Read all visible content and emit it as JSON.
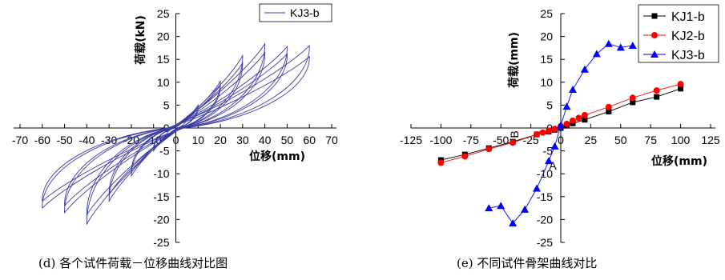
{
  "chart_data": [
    {
      "type": "line",
      "caption": "(d) 各个试件荷载－位移曲线对比图",
      "xlabel": "位移(mm)",
      "ylabel": "荷载(kN)",
      "xlim": [
        -70,
        70
      ],
      "ylim": [
        -25,
        25
      ],
      "x_ticks": [
        "-70",
        "-60",
        "-50",
        "-40",
        "-30",
        "-20",
        "-10",
        "0",
        "10",
        "20",
        "30",
        "40",
        "50",
        "60",
        "70"
      ],
      "y_ticks": [
        "25",
        "20",
        "15",
        "10",
        "5",
        "0",
        "-5",
        "-10",
        "-15",
        "-20",
        "-25"
      ],
      "legend": "top-right",
      "color": "#3a3aa8",
      "series": [
        {
          "name": "KJ3-b",
          "peaks": [
            {
              "pos_x": 5,
              "pos_y": 2.5,
              "neg_x": -5,
              "neg_y": -2.5
            },
            {
              "pos_x": 10,
              "pos_y": 5.0,
              "neg_x": -10,
              "neg_y": -5.0
            },
            {
              "pos_x": 10,
              "pos_y": 4.6,
              "neg_x": -10,
              "neg_y": -4.6
            },
            {
              "pos_x": 20,
              "pos_y": 10.2,
              "neg_x": -20,
              "neg_y": -10.5
            },
            {
              "pos_x": 20,
              "pos_y": 9.4,
              "neg_x": -20,
              "neg_y": -9.8
            },
            {
              "pos_x": 30,
              "pos_y": 15.8,
              "neg_x": -30,
              "neg_y": -16.0
            },
            {
              "pos_x": 30,
              "pos_y": 14.2,
              "neg_x": -30,
              "neg_y": -14.6
            },
            {
              "pos_x": 40,
              "pos_y": 18.4,
              "neg_x": -40,
              "neg_y": -21.0
            },
            {
              "pos_x": 40,
              "pos_y": 16.5,
              "neg_x": -40,
              "neg_y": -19.0
            },
            {
              "pos_x": 50,
              "pos_y": 17.8,
              "neg_x": -50,
              "neg_y": -18.5
            },
            {
              "pos_x": 50,
              "pos_y": 16.2,
              "neg_x": -50,
              "neg_y": -17.0
            },
            {
              "pos_x": 60,
              "pos_y": 18.0,
              "neg_x": -60,
              "neg_y": -17.5
            },
            {
              "pos_x": 60,
              "pos_y": 15.6,
              "neg_x": -60,
              "neg_y": -16.0
            }
          ]
        }
      ]
    },
    {
      "type": "line",
      "caption": "(e) 不同试件骨架曲线对比",
      "xlabel": "位移(mm)",
      "ylabel": "荷载(mm)",
      "xlim": [
        -125,
        125
      ],
      "ylim": [
        -25,
        25
      ],
      "x_ticks": [
        "-125",
        "-100",
        "-75",
        "-50",
        "-25",
        "0",
        "25",
        "50",
        "75",
        "100",
        "125"
      ],
      "y_ticks": [
        "25",
        "20",
        "15",
        "10",
        "5",
        "0",
        "-5",
        "-10",
        "-15",
        "-20",
        "-25"
      ],
      "legend": "top-right",
      "annotations": [
        "A",
        "B"
      ],
      "series": [
        {
          "name": "KJ1-b",
          "marker": "square",
          "color": "#000000",
          "x": [
            -100,
            -80,
            -60,
            -40,
            -20,
            -10,
            -5,
            0,
            5,
            10,
            20,
            40,
            60,
            80,
            100
          ],
          "y": [
            -7.0,
            -5.8,
            -4.4,
            -3.0,
            -1.4,
            -0.8,
            -0.4,
            0,
            0.5,
            1.0,
            1.8,
            3.6,
            5.6,
            6.8,
            8.6
          ]
        },
        {
          "name": "KJ2-b",
          "marker": "circle",
          "color": "#ff0000",
          "x": [
            -100,
            -80,
            -60,
            -40,
            -20,
            -15,
            -10,
            -5,
            0,
            5,
            10,
            15,
            20,
            40,
            60,
            80,
            100
          ],
          "y": [
            -7.6,
            -6.2,
            -4.6,
            -3.2,
            -1.4,
            -1.0,
            -0.6,
            -0.2,
            0.4,
            0.9,
            1.6,
            2.2,
            2.8,
            4.6,
            6.6,
            8.2,
            9.6
          ]
        },
        {
          "name": "KJ3-b",
          "marker": "triangle",
          "color": "#0000ff",
          "x": [
            -60,
            -50,
            -40,
            -30,
            -20,
            -10,
            -5,
            0,
            5,
            10,
            20,
            30,
            40,
            50,
            60
          ],
          "y": [
            -17.5,
            -17.0,
            -20.8,
            -17.8,
            -13.2,
            -7.2,
            -4.0,
            0.6,
            4.7,
            8.4,
            12.8,
            16.2,
            18.4,
            17.6,
            18.0
          ]
        }
      ]
    }
  ]
}
